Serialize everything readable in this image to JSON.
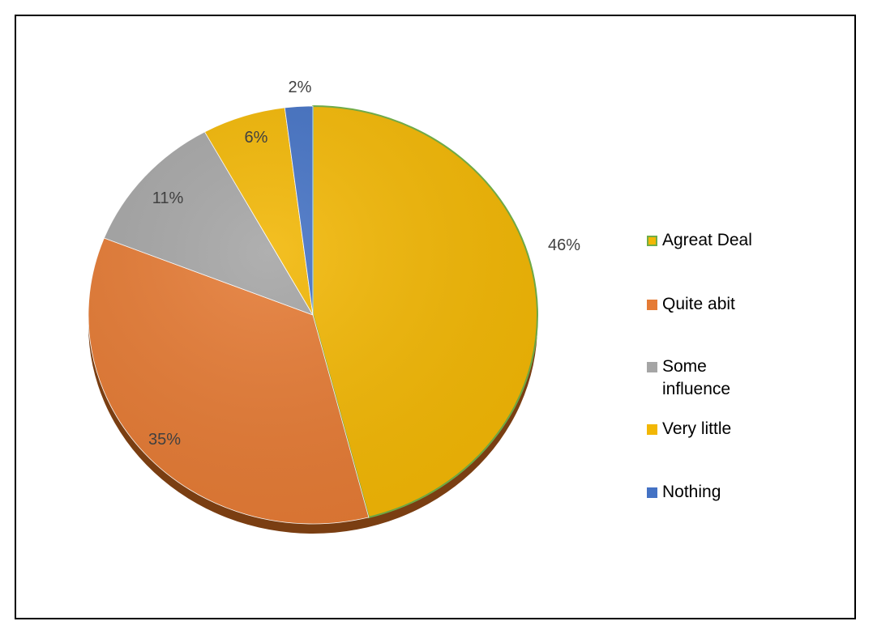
{
  "chart_data": {
    "type": "pie",
    "title": "",
    "slices": [
      {
        "label": "Agreat Deal",
        "value": 46,
        "display": "46%",
        "color": "#F2B705",
        "legend_border": "#70AD47"
      },
      {
        "label": "Quite abit",
        "value": 35,
        "display": "35%",
        "color": "#E57B35"
      },
      {
        "label": "Some influence",
        "value": 11,
        "display": "11%",
        "color": "#A5A5A5"
      },
      {
        "label": "Very little",
        "value": 6,
        "display": "6%",
        "color": "#F2B705"
      },
      {
        "label": "Nothing",
        "value": 2,
        "display": "2%",
        "color": "#4472C4"
      }
    ],
    "start_angle_deg": 0,
    "direction": "clockwise",
    "legend_position": "right"
  }
}
